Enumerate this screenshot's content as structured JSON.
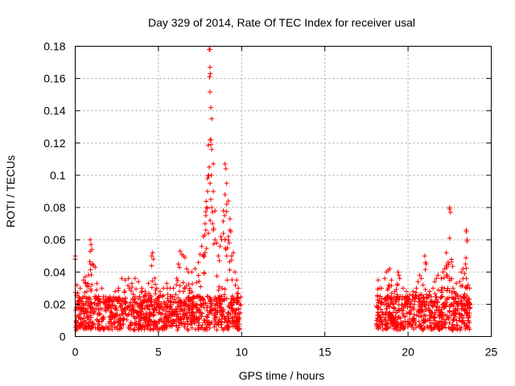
{
  "chart_data": {
    "type": "scatter",
    "title": "Day 329 of 2014, Rate Of TEC Index for receiver usal",
    "xlabel": "GPS time / hours",
    "ylabel": "ROTI / TECUs",
    "xlim": [
      0,
      25
    ],
    "ylim": [
      0,
      0.18
    ],
    "xticks": [
      0,
      5,
      10,
      15,
      20,
      25
    ],
    "yticks": [
      0,
      0.02,
      0.04,
      0.06,
      0.08,
      0.1,
      0.12,
      0.14,
      0.16,
      0.18
    ],
    "xtick_labels": [
      "0",
      "5",
      "10",
      "15",
      "20",
      "25"
    ],
    "ytick_labels": [
      "0",
      "0.02",
      "0.04",
      "0.06",
      "0.08",
      "0.1",
      "0.12",
      "0.14",
      "0.16",
      "0.18"
    ],
    "grid": true,
    "marker": "+",
    "color": "#ff0000",
    "series": [
      {
        "name": "ROTI",
        "points": [
          [
            0.0,
            0.05
          ],
          [
            0.0,
            0.048
          ],
          [
            0.1,
            0.032
          ],
          [
            0.15,
            0.027
          ],
          [
            0.2,
            0.022
          ],
          [
            0.3,
            0.03
          ],
          [
            0.4,
            0.018
          ],
          [
            0.5,
            0.035
          ],
          [
            0.6,
            0.037
          ],
          [
            0.7,
            0.028
          ],
          [
            0.8,
            0.038
          ],
          [
            0.9,
            0.06
          ],
          [
            0.95,
            0.057
          ],
          [
            1.0,
            0.054
          ],
          [
            1.05,
            0.045
          ],
          [
            1.1,
            0.044
          ],
          [
            1.2,
            0.043
          ],
          [
            1.3,
            0.033
          ],
          [
            1.4,
            0.025
          ],
          [
            1.6,
            0.03
          ],
          [
            1.8,
            0.02
          ],
          [
            2.0,
            0.024
          ],
          [
            2.2,
            0.022
          ],
          [
            2.4,
            0.028
          ],
          [
            2.6,
            0.03
          ],
          [
            2.8,
            0.036
          ],
          [
            3.0,
            0.035
          ],
          [
            3.2,
            0.036
          ],
          [
            3.4,
            0.033
          ],
          [
            3.6,
            0.036
          ],
          [
            3.8,
            0.034
          ],
          [
            4.0,
            0.03
          ],
          [
            4.2,
            0.028
          ],
          [
            4.4,
            0.033
          ],
          [
            4.6,
            0.05
          ],
          [
            4.65,
            0.052
          ],
          [
            4.7,
            0.048
          ],
          [
            4.9,
            0.03
          ],
          [
            5.1,
            0.028
          ],
          [
            5.3,
            0.03
          ],
          [
            5.5,
            0.033
          ],
          [
            5.7,
            0.03
          ],
          [
            5.9,
            0.03
          ],
          [
            6.1,
            0.036
          ],
          [
            6.2,
            0.045
          ],
          [
            6.3,
            0.053
          ],
          [
            6.4,
            0.051
          ],
          [
            6.5,
            0.05
          ],
          [
            6.6,
            0.049
          ],
          [
            6.7,
            0.042
          ],
          [
            6.8,
            0.04
          ],
          [
            7.0,
            0.04
          ],
          [
            7.2,
            0.042
          ],
          [
            7.4,
            0.046
          ],
          [
            7.5,
            0.051
          ],
          [
            7.6,
            0.056
          ],
          [
            7.7,
            0.062
          ],
          [
            7.8,
            0.07
          ],
          [
            7.85,
            0.066
          ],
          [
            7.9,
            0.08
          ],
          [
            7.95,
            0.09
          ],
          [
            8.0,
            0.1
          ],
          [
            8.05,
            0.105
          ],
          [
            8.1,
            0.095
          ],
          [
            8.15,
            0.085
          ],
          [
            8.2,
            0.08
          ],
          [
            8.0,
            0.064
          ],
          [
            8.1,
            0.072
          ],
          [
            7.85,
            0.075
          ],
          [
            7.7,
            0.05
          ],
          [
            8.25,
            0.07
          ],
          [
            8.3,
            0.066
          ],
          [
            8.4,
            0.06
          ],
          [
            8.5,
            0.058
          ],
          [
            8.6,
            0.05
          ],
          [
            8.7,
            0.056
          ],
          [
            8.75,
            0.062
          ],
          [
            8.8,
            0.06
          ],
          [
            8.9,
            0.064
          ],
          [
            9.0,
            0.06
          ],
          [
            9.05,
            0.054
          ],
          [
            9.1,
            0.05
          ],
          [
            9.15,
            0.055
          ],
          [
            9.2,
            0.062
          ],
          [
            9.25,
            0.058
          ],
          [
            9.3,
            0.066
          ],
          [
            9.35,
            0.065
          ],
          [
            9.4,
            0.05
          ],
          [
            9.5,
            0.052
          ],
          [
            9.6,
            0.04
          ],
          [
            9.7,
            0.035
          ],
          [
            9.8,
            0.03
          ],
          [
            9.9,
            0.02
          ],
          [
            8.05,
            0.178
          ],
          [
            8.1,
            0.178
          ],
          [
            8.1,
            0.167
          ],
          [
            8.12,
            0.163
          ],
          [
            8.08,
            0.161
          ],
          [
            8.15,
            0.142
          ],
          [
            8.2,
            0.135
          ],
          [
            8.1,
            0.122
          ],
          [
            8.15,
            0.119
          ],
          [
            8.2,
            0.116
          ],
          [
            8.3,
            0.107
          ],
          [
            8.18,
            0.1
          ],
          [
            7.95,
            0.098
          ],
          [
            9.0,
            0.107
          ],
          [
            9.05,
            0.104
          ],
          [
            9.1,
            0.095
          ],
          [
            9.0,
            0.088
          ],
          [
            9.2,
            0.084
          ],
          [
            9.1,
            0.082
          ],
          [
            8.9,
            0.078
          ],
          [
            9.3,
            0.073
          ],
          [
            8.3,
            0.09
          ],
          [
            8.4,
            0.078
          ],
          [
            18.2,
            0.035
          ],
          [
            18.3,
            0.03
          ],
          [
            18.4,
            0.03
          ],
          [
            18.6,
            0.036
          ],
          [
            18.7,
            0.04
          ],
          [
            18.8,
            0.041
          ],
          [
            18.9,
            0.042
          ],
          [
            19.0,
            0.035
          ],
          [
            19.2,
            0.028
          ],
          [
            19.4,
            0.04
          ],
          [
            19.45,
            0.038
          ],
          [
            19.5,
            0.036
          ],
          [
            19.7,
            0.03
          ],
          [
            19.9,
            0.028
          ],
          [
            20.1,
            0.026
          ],
          [
            20.3,
            0.028
          ],
          [
            20.5,
            0.03
          ],
          [
            20.6,
            0.034
          ],
          [
            20.7,
            0.038
          ],
          [
            20.8,
            0.036
          ],
          [
            20.9,
            0.032
          ],
          [
            21.1,
            0.026
          ],
          [
            21.3,
            0.028
          ],
          [
            21.5,
            0.03
          ],
          [
            21.6,
            0.034
          ],
          [
            21.7,
            0.036
          ],
          [
            21.8,
            0.038
          ],
          [
            22.0,
            0.036
          ],
          [
            22.1,
            0.04
          ],
          [
            22.2,
            0.042
          ],
          [
            22.3,
            0.044
          ],
          [
            22.4,
            0.046
          ],
          [
            22.5,
            0.036
          ],
          [
            22.7,
            0.03
          ],
          [
            22.9,
            0.033
          ],
          [
            23.1,
            0.034
          ],
          [
            23.2,
            0.04
          ],
          [
            23.3,
            0.042
          ],
          [
            23.4,
            0.039
          ],
          [
            23.5,
            0.036
          ],
          [
            23.6,
            0.032
          ],
          [
            23.7,
            0.03
          ],
          [
            21.0,
            0.05
          ],
          [
            21.05,
            0.046
          ],
          [
            21.08,
            0.045
          ],
          [
            22.5,
            0.08
          ],
          [
            22.5,
            0.079
          ],
          [
            22.55,
            0.077
          ],
          [
            22.5,
            0.061
          ],
          [
            22.3,
            0.052
          ],
          [
            23.5,
            0.065
          ],
          [
            23.5,
            0.066
          ],
          [
            23.55,
            0.06
          ],
          [
            23.55,
            0.059
          ],
          [
            23.45,
            0.045
          ]
        ]
      }
    ],
    "noise_floor": {
      "intervals": [
        [
          0.0,
          9.95
        ],
        [
          18.1,
          23.75
        ]
      ],
      "base_min": 0.004,
      "base_max": 0.025
    }
  }
}
